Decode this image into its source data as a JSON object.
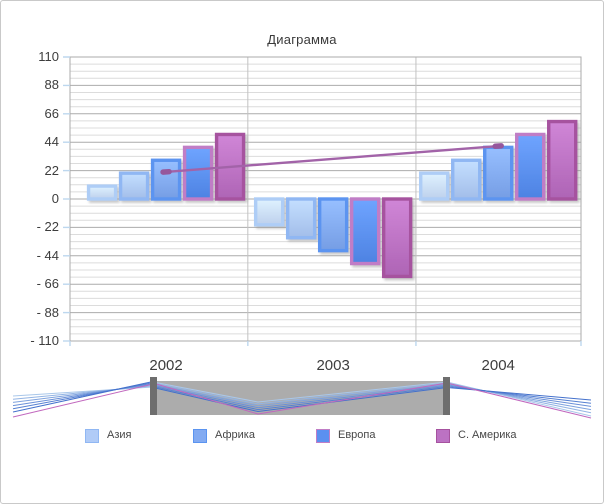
{
  "chart_data": {
    "type": "bar",
    "title": "Диаграмма",
    "categories": [
      "2002",
      "2003",
      "2004"
    ],
    "series": [
      {
        "name": "",
        "in_legend": false,
        "fill": "#CBDEFA",
        "border": "#AECDF6",
        "values": [
          10,
          -20,
          20
        ]
      },
      {
        "name": "Азия",
        "in_legend": true,
        "fill": "#B0CBF7",
        "border": "#90B7F3",
        "values": [
          20,
          -30,
          30
        ]
      },
      {
        "name": "Африка",
        "in_legend": true,
        "fill": "#83ABF2",
        "border": "#5B94F0",
        "values": [
          30,
          -40,
          40
        ]
      },
      {
        "name": "Европа",
        "in_legend": true,
        "fill": "#5B90F0",
        "border": "#C07DC6",
        "values": [
          40,
          -50,
          50
        ]
      },
      {
        "name": "С. Америка",
        "in_legend": true,
        "fill": "#BC72C3",
        "border": "#A6529F",
        "values": [
          50,
          -60,
          60
        ]
      }
    ],
    "trendline": {
      "color": "#A263A8",
      "points": [
        {
          "category_index": 0,
          "value": 21
        },
        {
          "category_index": 2,
          "value": 41
        }
      ]
    },
    "y_axis": {
      "min": -110,
      "max": 110,
      "major_step": 22,
      "minor_step": 5.5,
      "tick_labels": [
        "110",
        "88",
        "66",
        "44",
        "22",
        "0",
        "- 22",
        "- 44",
        "- 66",
        "- 88",
        "- 110"
      ]
    },
    "legend_position": "bottom",
    "grid": {
      "major_color": "#ABABAB",
      "minor_color": "#DCDCDC",
      "tick_color": "#BDD7EE",
      "border_color": "#ABABAB"
    }
  },
  "range_selector": {
    "track_color": "#ACACAC",
    "handle_color": "#6E6E6E",
    "sparkline_colors": [
      "#A9C7EA",
      "#93B4E4",
      "#7EA2DE",
      "#6A90D8",
      "#5680D2",
      "#4471CC"
    ],
    "accent_line_color": "#C168BE"
  },
  "page": {
    "background": "#FFFFFF",
    "frame_border": "#C9C9C9"
  }
}
